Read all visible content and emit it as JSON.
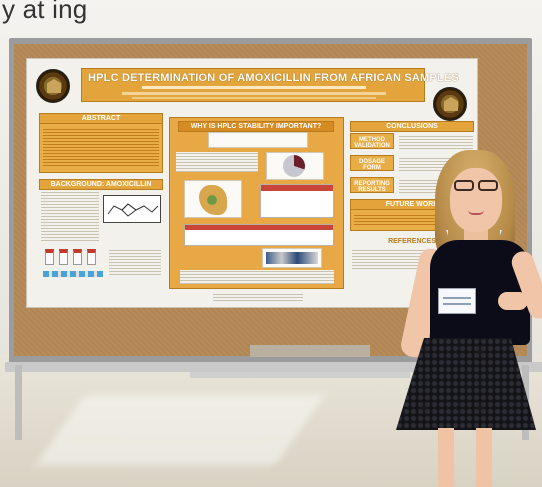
{
  "caption": "y at  ing   ",
  "poster": {
    "title": "HPLC DETERMINATION OF AMOXICILLIN FROM AFRICAN SAMPLES",
    "sections": {
      "abstract": "ABSTRACT",
      "background": "BACKGROUND: AMOXICILLIN",
      "middle": "WHY IS HPLC STABILITY IMPORTANT?",
      "conclusions": "CONCLUSIONS",
      "method": "METHOD VALIDATION",
      "dosage": "DOSAGE FORM",
      "reporting": "REPORTING RESULTS",
      "future": "FUTURE WORK",
      "references": "REFERENCES"
    }
  },
  "colors": {
    "poster_accent": "#e2a43b",
    "corkboard": "#b68a57",
    "dress": "#0c0c18"
  },
  "icons": [
    "university-seal-icon"
  ]
}
